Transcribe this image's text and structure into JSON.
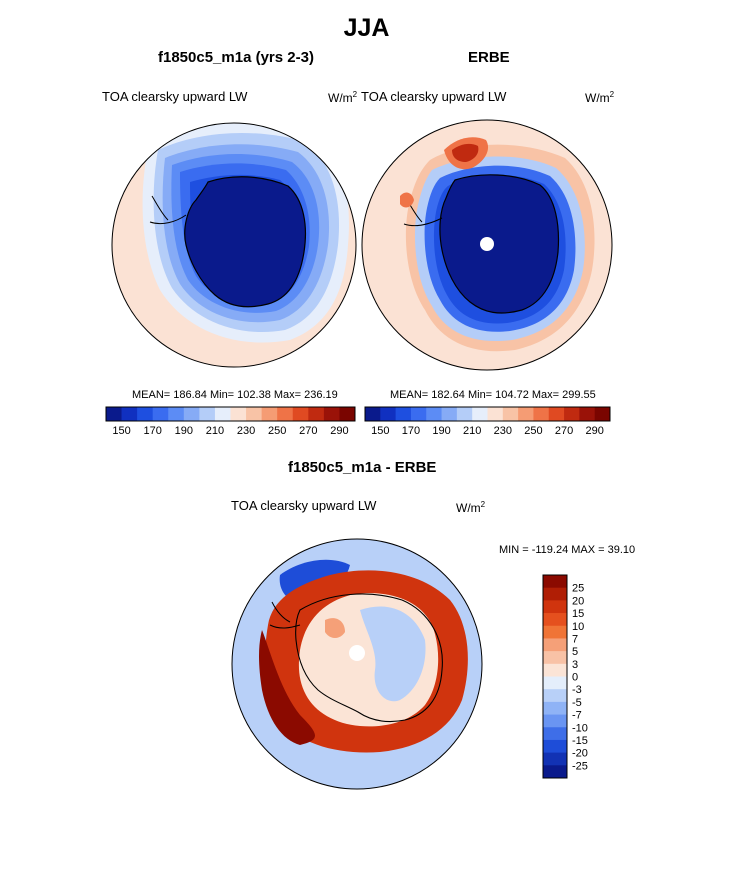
{
  "figure": {
    "title": "JJA",
    "panel1": {
      "title": "f1850c5_m1a (yrs 2-3)",
      "variable": "TOA clearsky upward LW",
      "units": "W/m",
      "units_exp": "2",
      "stats": "MEAN= 186.84  Min= 102.38  Max= 236.19"
    },
    "panel2": {
      "title": "ERBE",
      "variable": "TOA clearsky upward LW",
      "units": "W/m",
      "units_exp": "2",
      "stats": "MEAN= 182.64  Min= 104.72  Max= 299.55"
    },
    "panel3": {
      "title": "f1850c5_m1a - ERBE",
      "variable": "TOA clearsky upward LW",
      "units": "W/m",
      "units_exp": "2",
      "stats": "MIN = -119.24 MAX =  39.10"
    }
  },
  "chart_data": [
    {
      "type": "heatmap",
      "projection": "south polar stereographic",
      "title": "f1850c5_m1a (yrs 2-3)",
      "colorbar_labels": [
        "150",
        "170",
        "190",
        "210",
        "230",
        "250",
        "270",
        "290"
      ],
      "levels": [
        150,
        160,
        170,
        180,
        190,
        200,
        210,
        220,
        230,
        240,
        250,
        260,
        270,
        280,
        290
      ],
      "colors": [
        "#0a1a8c",
        "#1030c0",
        "#1e4fe0",
        "#3a6cf0",
        "#5c8cf5",
        "#86abf6",
        "#b4cdf8",
        "#e6eefb",
        "#fbe2d4",
        "#f8c3a6",
        "#f59c74",
        "#ef7347",
        "#e04a22",
        "#c02a10",
        "#9a1208",
        "#7a0500"
      ],
      "mean": 186.84,
      "min": 102.38,
      "max": 236.19
    },
    {
      "type": "heatmap",
      "projection": "south polar stereographic",
      "title": "ERBE",
      "colorbar_labels": [
        "150",
        "170",
        "190",
        "210",
        "230",
        "250",
        "270",
        "290"
      ],
      "levels": [
        150,
        160,
        170,
        180,
        190,
        200,
        210,
        220,
        230,
        240,
        250,
        260,
        270,
        280,
        290
      ],
      "colors": [
        "#0a1a8c",
        "#1030c0",
        "#1e4fe0",
        "#3a6cf0",
        "#5c8cf5",
        "#86abf6",
        "#b4cdf8",
        "#e6eefb",
        "#fbe2d4",
        "#f8c3a6",
        "#f59c74",
        "#ef7347",
        "#e04a22",
        "#c02a10",
        "#9a1208",
        "#7a0500"
      ],
      "mean": 182.64,
      "min": 104.72,
      "max": 299.55
    },
    {
      "type": "heatmap",
      "projection": "south polar stereographic",
      "title": "f1850c5_m1a - ERBE",
      "colorbar_labels": [
        "25",
        "20",
        "15",
        "10",
        "7",
        "5",
        "3",
        "0",
        "-3",
        "-5",
        "-7",
        "-10",
        "-15",
        "-20",
        "-25"
      ],
      "colors": [
        "#8b0a00",
        "#b01e05",
        "#d0340e",
        "#e5501e",
        "#f07436",
        "#f5a078",
        "#f8c2a6",
        "#fbe4d6",
        "#e4eefb",
        "#b8d0f8",
        "#8fb3f6",
        "#6a95f2",
        "#3e6ee8",
        "#1e4dd8",
        "#1232b4",
        "#0a1a8c"
      ],
      "min": -119.24,
      "max": 39.1
    }
  ]
}
